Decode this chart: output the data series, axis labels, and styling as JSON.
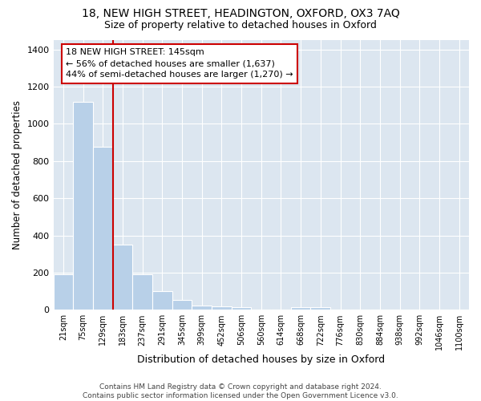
{
  "title": "18, NEW HIGH STREET, HEADINGTON, OXFORD, OX3 7AQ",
  "subtitle": "Size of property relative to detached houses in Oxford",
  "xlabel": "Distribution of detached houses by size in Oxford",
  "ylabel": "Number of detached properties",
  "categories": [
    "21sqm",
    "75sqm",
    "129sqm",
    "183sqm",
    "237sqm",
    "291sqm",
    "345sqm",
    "399sqm",
    "452sqm",
    "506sqm",
    "560sqm",
    "614sqm",
    "668sqm",
    "722sqm",
    "776sqm",
    "830sqm",
    "884sqm",
    "938sqm",
    "992sqm",
    "1046sqm",
    "1100sqm"
  ],
  "values": [
    190,
    1120,
    875,
    350,
    190,
    100,
    55,
    25,
    20,
    15,
    0,
    0,
    15,
    15,
    0,
    0,
    0,
    0,
    0,
    0,
    0
  ],
  "bar_color": "#b8d0e8",
  "bar_edgecolor": "#b8d0e8",
  "vline_x_index": 2.5,
  "vline_color": "#cc0000",
  "annotation_text": "18 NEW HIGH STREET: 145sqm\n← 56% of detached houses are smaller (1,637)\n44% of semi-detached houses are larger (1,270) →",
  "annotation_box_color": "#ffffff",
  "annotation_box_edgecolor": "#cc0000",
  "ylim": [
    0,
    1450
  ],
  "yticks": [
    0,
    200,
    400,
    600,
    800,
    1000,
    1200,
    1400
  ],
  "plot_bg_color": "#dce6f0",
  "fig_bg_color": "#ffffff",
  "grid_color": "#ffffff",
  "footer": "Contains HM Land Registry data © Crown copyright and database right 2024.\nContains public sector information licensed under the Open Government Licence v3.0."
}
